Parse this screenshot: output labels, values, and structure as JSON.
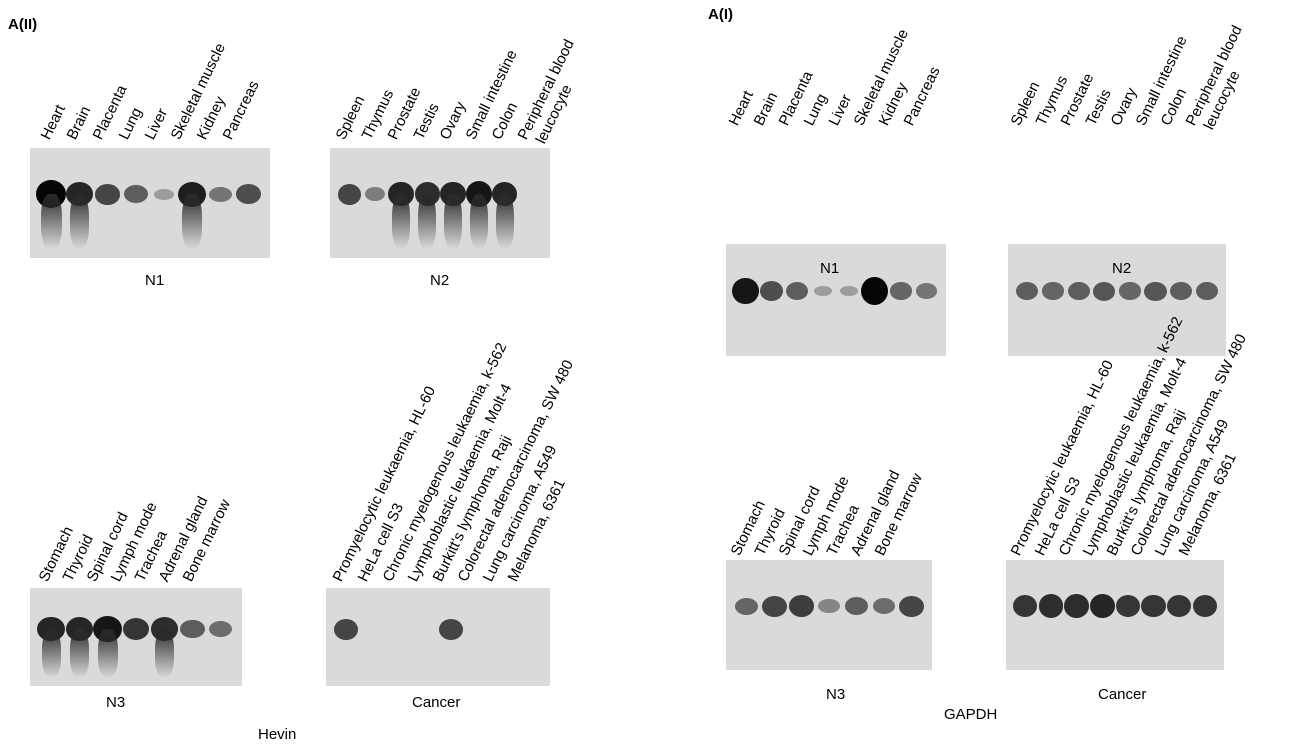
{
  "panels": {
    "left": {
      "letter": "A(II)",
      "probe": "Hevin"
    },
    "right": {
      "letter": "A(I)",
      "probe": "GAPDH"
    }
  },
  "blots": {
    "n1": {
      "caption": "N1",
      "lanes": [
        "Heart",
        "Brain",
        "Placenta",
        "Lung",
        "Liver",
        "Skeletal muscle",
        "Kidney",
        "Pancreas"
      ]
    },
    "n2": {
      "caption": "N2",
      "lanes": [
        "Spleen",
        "Thymus",
        "Prostate",
        "Testis",
        "Ovary",
        "Small intestine",
        "Colon",
        "Peripheral blood",
        "leucocyte"
      ]
    },
    "n3": {
      "caption": "N3",
      "lanes": [
        "Stomach",
        "Thyroid",
        "Spinal cord",
        "Lymph mode",
        "Trachea",
        "Adrenal gland",
        "Bone marrow"
      ]
    },
    "cancer": {
      "caption": "Cancer",
      "lanes": [
        "Promyelocytic leukaemia, HL-60",
        "HeLa cell S3",
        "Chronic myelogenous leukaemia, k-562",
        "Lymphoblastic leukaemia, Molt-4",
        "Burkitt's lymphoma, Raji",
        "Colorectal adenocarcinoma, SW 480",
        "Lung carcinoma, A549",
        "Melanoma, 6361"
      ]
    }
  }
}
